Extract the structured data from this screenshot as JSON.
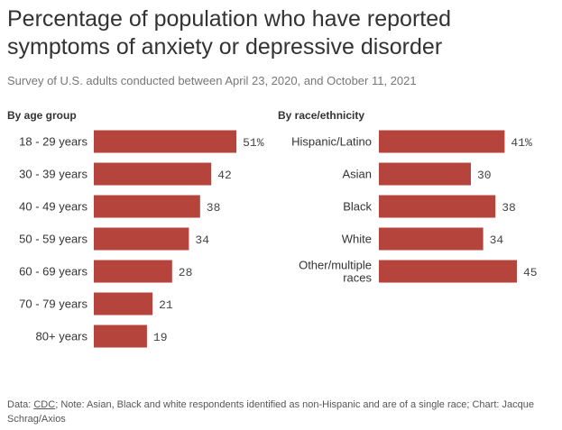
{
  "title": "Percentage of population who have reported symptoms of anxiety or depressive disorder",
  "subtitle": "Survey of U.S. adults conducted between April 23, 2020, and October 11, 2021",
  "footer": {
    "prefix": "Data: ",
    "source": "CDC",
    "rest": "; Note: Asian, Black and white respondents identified as non-Hispanic and are of a single race; Chart: Jacque Schrag/Axios"
  },
  "colors": {
    "bar": "#b5443c",
    "text": "#333333",
    "value_text": "#444444"
  },
  "chart_data": [
    {
      "type": "bar",
      "orientation": "horizontal",
      "title": "By age group",
      "categories": [
        [
          "18 - 29 years"
        ],
        [
          "30 - 39 years"
        ],
        [
          "40 - 49 years"
        ],
        [
          "50 - 59 years"
        ],
        [
          "60 - 69 years"
        ],
        [
          "70 - 79 years"
        ],
        [
          "80+ years"
        ]
      ],
      "values": [
        51,
        42,
        38,
        34,
        28,
        21,
        19
      ],
      "value_labels": [
        "51%",
        "42",
        "38",
        "34",
        "28",
        "21",
        "19"
      ],
      "xlim": [
        0,
        100
      ]
    },
    {
      "type": "bar",
      "orientation": "horizontal",
      "title": "By race/ethnicity",
      "categories": [
        [
          "Hispanic/Latino"
        ],
        [
          "Asian"
        ],
        [
          "Black"
        ],
        [
          "White"
        ],
        [
          "Other/multiple",
          "races"
        ]
      ],
      "values": [
        41,
        30,
        38,
        34,
        45
      ],
      "value_labels": [
        "41%",
        "30",
        "38",
        "34",
        "45"
      ],
      "xlim": [
        0,
        100
      ]
    }
  ]
}
